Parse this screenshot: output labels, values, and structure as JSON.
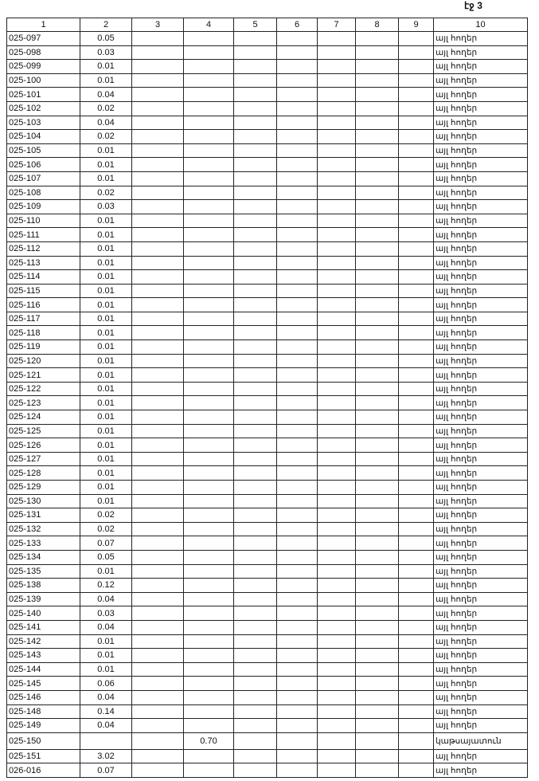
{
  "page_mark": "էջ 3",
  "columns": [
    "1",
    "2",
    "3",
    "4",
    "5",
    "6",
    "7",
    "8",
    "9",
    "10"
  ],
  "rows": [
    {
      "c1": "025-097",
      "c2": "0.05",
      "c4": "",
      "c10": "այլ հողեր"
    },
    {
      "c1": "025-098",
      "c2": "0.03",
      "c4": "",
      "c10": "այլ հողեր"
    },
    {
      "c1": "025-099",
      "c2": "0.01",
      "c4": "",
      "c10": "այլ հողեր"
    },
    {
      "c1": "025-100",
      "c2": "0.01",
      "c4": "",
      "c10": "այլ հողեր"
    },
    {
      "c1": "025-101",
      "c2": "0.04",
      "c4": "",
      "c10": "այլ հողեր"
    },
    {
      "c1": "025-102",
      "c2": "0.02",
      "c4": "",
      "c10": "այլ հողեր"
    },
    {
      "c1": "025-103",
      "c2": "0.04",
      "c4": "",
      "c10": "այլ հողեր"
    },
    {
      "c1": "025-104",
      "c2": "0.02",
      "c4": "",
      "c10": "այլ հողեր"
    },
    {
      "c1": "025-105",
      "c2": "0.01",
      "c4": "",
      "c10": "այլ հողեր"
    },
    {
      "c1": "025-106",
      "c2": "0.01",
      "c4": "",
      "c10": "այլ հողեր"
    },
    {
      "c1": "025-107",
      "c2": "0.01",
      "c4": "",
      "c10": "այլ հողեր"
    },
    {
      "c1": "025-108",
      "c2": "0.02",
      "c4": "",
      "c10": "այլ հողեր"
    },
    {
      "c1": "025-109",
      "c2": "0.03",
      "c4": "",
      "c10": "այլ հողեր"
    },
    {
      "c1": "025-110",
      "c2": "0.01",
      "c4": "",
      "c10": "այլ հողեր"
    },
    {
      "c1": "025-111",
      "c2": "0.01",
      "c4": "",
      "c10": "այլ հողեր"
    },
    {
      "c1": "025-112",
      "c2": "0.01",
      "c4": "",
      "c10": "այլ հողեր"
    },
    {
      "c1": "025-113",
      "c2": "0.01",
      "c4": "",
      "c10": "այլ հողեր"
    },
    {
      "c1": "025-114",
      "c2": "0.01",
      "c4": "",
      "c10": "այլ հողեր"
    },
    {
      "c1": "025-115",
      "c2": "0.01",
      "c4": "",
      "c10": "այլ հողեր"
    },
    {
      "c1": "025-116",
      "c2": "0.01",
      "c4": "",
      "c10": "այլ հողեր"
    },
    {
      "c1": "025-117",
      "c2": "0.01",
      "c4": "",
      "c10": "այլ հողեր"
    },
    {
      "c1": "025-118",
      "c2": "0.01",
      "c4": "",
      "c10": "այլ հողեր"
    },
    {
      "c1": "025-119",
      "c2": "0.01",
      "c4": "",
      "c10": "այլ հողեր"
    },
    {
      "c1": "025-120",
      "c2": "0.01",
      "c4": "",
      "c10": "այլ հողեր"
    },
    {
      "c1": "025-121",
      "c2": "0.01",
      "c4": "",
      "c10": "այլ հողեր"
    },
    {
      "c1": "025-122",
      "c2": "0.01",
      "c4": "",
      "c10": "այլ հողեր"
    },
    {
      "c1": "025-123",
      "c2": "0.01",
      "c4": "",
      "c10": "այլ հողեր"
    },
    {
      "c1": "025-124",
      "c2": "0.01",
      "c4": "",
      "c10": "այլ հողեր"
    },
    {
      "c1": "025-125",
      "c2": "0.01",
      "c4": "",
      "c10": "այլ հողեր"
    },
    {
      "c1": "025-126",
      "c2": "0.01",
      "c4": "",
      "c10": "այլ հողեր"
    },
    {
      "c1": "025-127",
      "c2": "0.01",
      "c4": "",
      "c10": "այլ հողեր"
    },
    {
      "c1": "025-128",
      "c2": "0.01",
      "c4": "",
      "c10": "այլ հողեր"
    },
    {
      "c1": "025-129",
      "c2": "0.01",
      "c4": "",
      "c10": "այլ հողեր"
    },
    {
      "c1": "025-130",
      "c2": "0.01",
      "c4": "",
      "c10": "այլ հողեր"
    },
    {
      "c1": "025-131",
      "c2": "0.02",
      "c4": "",
      "c10": "այլ հողեր"
    },
    {
      "c1": "025-132",
      "c2": "0.02",
      "c4": "",
      "c10": "այլ հողեր"
    },
    {
      "c1": "025-133",
      "c2": "0.07",
      "c4": "",
      "c10": "այլ հողեր"
    },
    {
      "c1": "025-134",
      "c2": "0.05",
      "c4": "",
      "c10": "այլ հողեր"
    },
    {
      "c1": "025-135",
      "c2": "0.01",
      "c4": "",
      "c10": "այլ հողեր"
    },
    {
      "c1": "025-138",
      "c2": "0.12",
      "c4": "",
      "c10": "այլ հողեր"
    },
    {
      "c1": "025-139",
      "c2": "0.04",
      "c4": "",
      "c10": "այլ հողեր"
    },
    {
      "c1": "025-140",
      "c2": "0.03",
      "c4": "",
      "c10": "այլ հողեր"
    },
    {
      "c1": "025-141",
      "c2": "0.04",
      "c4": "",
      "c10": "այլ հողեր"
    },
    {
      "c1": "025-142",
      "c2": "0.01",
      "c4": "",
      "c10": "այլ հողեր"
    },
    {
      "c1": "025-143",
      "c2": "0.01",
      "c4": "",
      "c10": "այլ հողեր"
    },
    {
      "c1": "025-144",
      "c2": "0.01",
      "c4": "",
      "c10": "այլ հողեր"
    },
    {
      "c1": "025-145",
      "c2": "0.06",
      "c4": "",
      "c10": "այլ հողեր"
    },
    {
      "c1": "025-146",
      "c2": "0.04",
      "c4": "",
      "c10": "այլ հողեր"
    },
    {
      "c1": "025-148",
      "c2": "0.14",
      "c4": "",
      "c10": "այլ հողեր"
    },
    {
      "c1": "025-149",
      "c2": "0.04",
      "c4": "",
      "c10": "այլ հողեր"
    },
    {
      "c1": "025-150",
      "c2": "",
      "c4": "0.70",
      "c10": "կաթսայատուն"
    },
    {
      "c1": "025-151",
      "c2": "3.02",
      "c4": "",
      "c10": "այլ հողեր"
    },
    {
      "c1": "026-016",
      "c2": "0.07",
      "c4": "",
      "c10": "այլ հողեր"
    }
  ]
}
